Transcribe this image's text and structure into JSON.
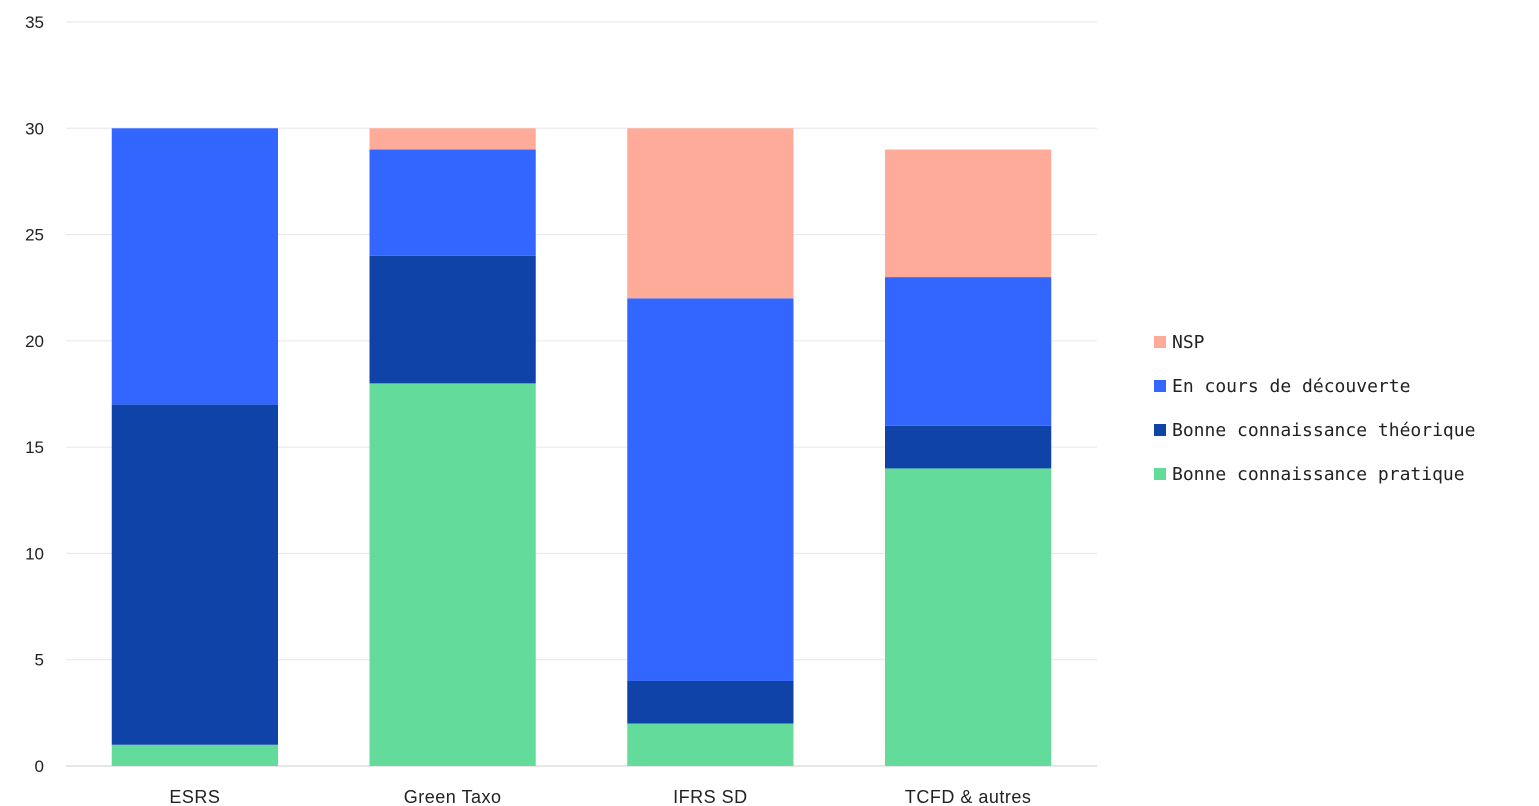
{
  "chart_data": {
    "type": "bar",
    "stacked": true,
    "title": "",
    "xlabel": "",
    "ylabel": "",
    "categories": [
      "ESRS",
      "Green Taxo",
      "IFRS SD",
      "TCFD & autres"
    ],
    "ylim": [
      0,
      35
    ],
    "yticks": [
      0,
      5,
      10,
      15,
      20,
      25,
      30,
      35
    ],
    "grid": true,
    "legend_position": "right",
    "series": [
      {
        "name": "Bonne connaissance pratique",
        "color": "#63DB9A",
        "values": [
          1,
          18,
          2,
          14
        ]
      },
      {
        "name": "Bonne connaissance théorique",
        "color": "#1043A8",
        "values": [
          16,
          6,
          2,
          2
        ]
      },
      {
        "name": "En cours de découverte",
        "color": "#3366FF",
        "values": [
          13,
          5,
          18,
          7
        ]
      },
      {
        "name": "NSP",
        "color": "#FFAB99",
        "values": [
          0,
          1,
          8,
          6
        ]
      }
    ]
  }
}
